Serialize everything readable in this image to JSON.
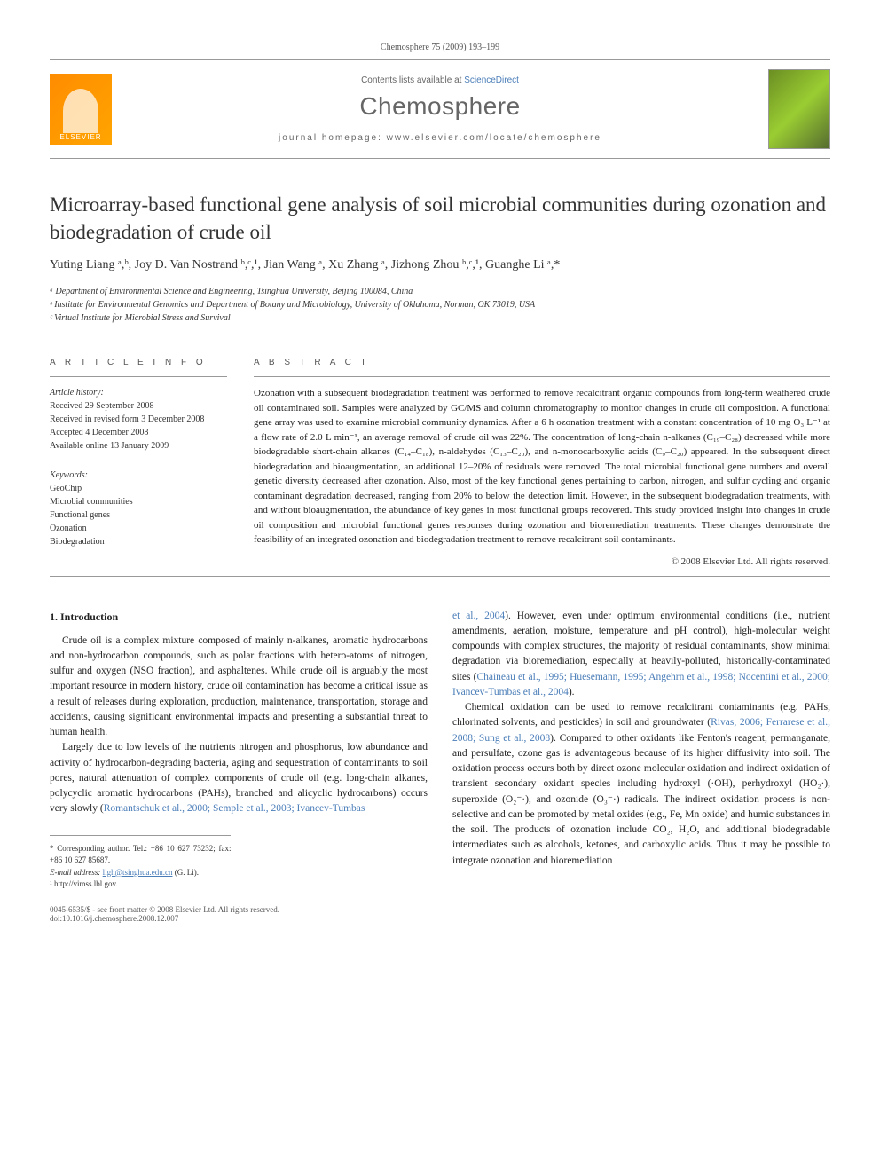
{
  "header": {
    "citation": "Chemosphere 75 (2009) 193–199",
    "contents_prefix": "Contents lists available at ",
    "contents_link": "ScienceDirect",
    "journal": "Chemosphere",
    "homepage_prefix": "journal homepage: ",
    "homepage_url": "www.elsevier.com/locate/chemosphere",
    "publisher_logo": "ELSEVIER"
  },
  "title": "Microarray-based functional gene analysis of soil microbial communities during ozonation and biodegradation of crude oil",
  "authors": "Yuting Liang ᵃ,ᵇ, Joy D. Van Nostrand ᵇ,ᶜ,¹, Jian Wang ᵃ, Xu Zhang ᵃ, Jizhong Zhou ᵇ,ᶜ,¹, Guanghe Li ᵃ,*",
  "affiliations": {
    "a": "ᵃ Department of Environmental Science and Engineering, Tsinghua University, Beijing 100084, China",
    "b": "ᵇ Institute for Environmental Genomics and Department of Botany and Microbiology, University of Oklahoma, Norman, OK 73019, USA",
    "c": "ᶜ Virtual Institute for Microbial Stress and Survival"
  },
  "article_info": {
    "heading": "A R T I C L E   I N F O",
    "history_label": "Article history:",
    "received": "Received 29 September 2008",
    "revised": "Received in revised form 3 December 2008",
    "accepted": "Accepted 4 December 2008",
    "online": "Available online 13 January 2009",
    "keywords_label": "Keywords:",
    "keywords": [
      "GeoChip",
      "Microbial communities",
      "Functional genes",
      "Ozonation",
      "Biodegradation"
    ]
  },
  "abstract": {
    "heading": "A B S T R A C T",
    "text": "Ozonation with a subsequent biodegradation treatment was performed to remove recalcitrant organic compounds from long-term weathered crude oil contaminated soil. Samples were analyzed by GC/MS and column chromatography to monitor changes in crude oil composition. A functional gene array was used to examine microbial community dynamics. After a 6 h ozonation treatment with a constant concentration of 10 mg O₃ L⁻¹ at a flow rate of 2.0 L min⁻¹, an average removal of crude oil was 22%. The concentration of long-chain n-alkanes (C₁₉–C₂₈) decreased while more biodegradable short-chain alkanes (C₁₄–C₁₈), n-aldehydes (C₁₃–C₂₀), and n-monocarboxylic acids (C₉–C₂₀) appeared. In the subsequent direct biodegradation and bioaugmentation, an additional 12–20% of residuals were removed. The total microbial functional gene numbers and overall genetic diversity decreased after ozonation. Also, most of the key functional genes pertaining to carbon, nitrogen, and sulfur cycling and organic contaminant degradation decreased, ranging from 20% to below the detection limit. However, in the subsequent biodegradation treatments, with and without bioaugmentation, the abundance of key genes in most functional groups recovered. This study provided insight into changes in crude oil composition and microbial functional genes responses during ozonation and bioremediation treatments. These changes demonstrate the feasibility of an integrated ozonation and biodegradation treatment to remove recalcitrant soil contaminants.",
    "copyright": "© 2008 Elsevier Ltd. All rights reserved."
  },
  "body": {
    "intro_heading": "1. Introduction",
    "col1_p1": "Crude oil is a complex mixture composed of mainly n-alkanes, aromatic hydrocarbons and non-hydrocarbon compounds, such as polar fractions with hetero-atoms of nitrogen, sulfur and oxygen (NSO fraction), and asphaltenes. While crude oil is arguably the most important resource in modern history, crude oil contamination has become a critical issue as a result of releases during exploration, production, maintenance, transportation, storage and accidents, causing significant environmental impacts and presenting a substantial threat to human health.",
    "col1_p2a": "Largely due to low levels of the nutrients nitrogen and phosphorus, low abundance and activity of hydrocarbon-degrading bacteria, aging and sequestration of contaminants to soil pores, natural attenuation of complex components of crude oil (e.g. long-chain alkanes, polycyclic aromatic hydrocarbons (PAHs), branched and alicyclic hydrocarbons) occurs very slowly (",
    "col1_ref1": "Romantschuk et al., 2000; Semple et al., 2003; Ivancev-Tumbas",
    "col2_ref_cont": "et al., 2004",
    "col2_p1a": "). However, even under optimum environmental conditions (i.e., nutrient amendments, aeration, moisture, temperature and pH control), high-molecular weight compounds with complex structures, the majority of residual contaminants, show minimal degradation via bioremediation, especially at heavily-polluted, historically-contaminated sites (",
    "col2_ref2": "Chaineau et al., 1995; Huesemann, 1995; Angehrn et al., 1998; Nocentini et al., 2000; Ivancev-Tumbas et al., 2004",
    "col2_p1b": ").",
    "col2_p2a": "Chemical oxidation can be used to remove recalcitrant contaminants (e.g. PAHs, chlorinated solvents, and pesticides) in soil and groundwater (",
    "col2_ref3": "Rivas, 2006; Ferrarese et al., 2008; Sung et al., 2008",
    "col2_p2b": "). Compared to other oxidants like Fenton's reagent, permanganate, and persulfate, ozone gas is advantageous because of its higher diffusivity into soil. The oxidation process occurs both by direct ozone molecular oxidation and indirect oxidation of transient secondary oxidant species including hydroxyl (·OH), perhydroxyl (HO₂·), superoxide (O₂⁻·), and ozonide (O₃⁻·) radicals. The indirect oxidation process is non-selective and can be promoted by metal oxides (e.g., Fe, Mn oxide) and humic substances in the soil. The products of ozonation include CO₂, H₂O, and additional biodegradable intermediates such as alcohols, ketones, and carboxylic acids. Thus it may be possible to integrate ozonation and bioremediation"
  },
  "footnotes": {
    "corr": "* Corresponding author. Tel.: +86 10 627 73232; fax: +86 10 627 85687.",
    "email_label": "E-mail address: ",
    "email": "ligh@tsinghua.edu.cn",
    "email_suffix": " (G. Li).",
    "note1": "¹ http://vimss.lbl.gov."
  },
  "footer": {
    "left1": "0045-6535/$ - see front matter © 2008 Elsevier Ltd. All rights reserved.",
    "left2": "doi:10.1016/j.chemosphere.2008.12.007"
  }
}
